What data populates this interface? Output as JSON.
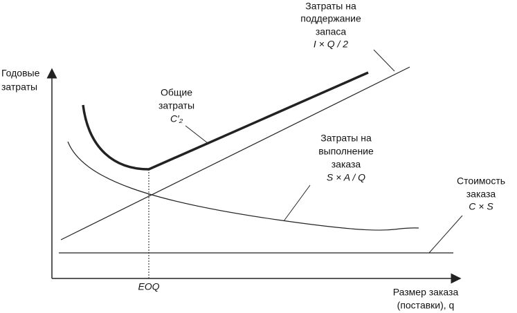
{
  "y_axis_label": [
    "Годовые",
    "затраты"
  ],
  "x_axis_label": [
    "Размер заказа",
    "(поставки), q"
  ],
  "eoq_label": "EOQ",
  "holding_cost": {
    "lines": [
      "Затраты на",
      "поддержание",
      "запаса"
    ],
    "formula": "I × Q / 2"
  },
  "total_cost": {
    "lines": [
      "Общие",
      "затраты"
    ],
    "formula": "C′₂"
  },
  "ordering_cost": {
    "lines": [
      "Затраты на",
      "выполнение",
      "заказа"
    ],
    "formula": "S × A / Q"
  },
  "purchase_cost": {
    "lines": [
      "Стоимость",
      "заказа"
    ],
    "formula": "C × S"
  }
}
